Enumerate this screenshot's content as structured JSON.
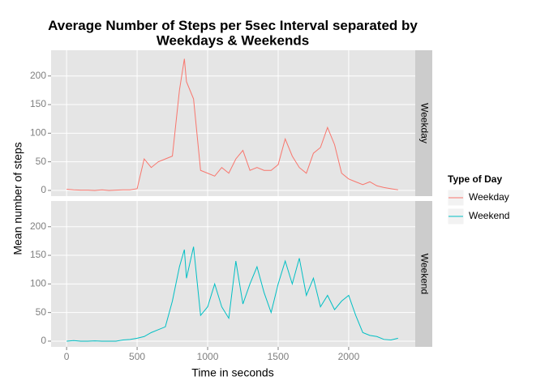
{
  "chart_data": {
    "type": "line",
    "title": "Average Number of Steps per 5sec Interval separated by\nWeekdays & Weekends",
    "x_label": "Time in seconds",
    "y_label": "Mean number of steps",
    "legend_title": "Type of Day",
    "x": [
      0,
      50,
      100,
      150,
      200,
      250,
      300,
      350,
      400,
      450,
      500,
      550,
      600,
      650,
      700,
      750,
      800,
      835,
      850,
      900,
      950,
      1000,
      1050,
      1100,
      1150,
      1200,
      1250,
      1300,
      1350,
      1400,
      1450,
      1500,
      1550,
      1600,
      1650,
      1700,
      1750,
      1800,
      1850,
      1900,
      1950,
      2000,
      2050,
      2100,
      2150,
      2200,
      2250,
      2300,
      2350
    ],
    "series": [
      {
        "name": "Weekday",
        "color": "#f8766d",
        "values": [
          2,
          1,
          0.5,
          0.5,
          0,
          1,
          0,
          0.5,
          1,
          1,
          3,
          55,
          40,
          50,
          55,
          60,
          175,
          230,
          190,
          160,
          35,
          30,
          25,
          40,
          30,
          55,
          70,
          35,
          40,
          35,
          35,
          45,
          90,
          60,
          40,
          30,
          65,
          75,
          110,
          80,
          30,
          20,
          15,
          10,
          15,
          8,
          5,
          3,
          1
        ]
      },
      {
        "name": "Weekend",
        "color": "#00bfc4",
        "values": [
          0,
          1,
          0,
          0,
          0.5,
          0,
          0,
          0,
          2,
          3,
          5,
          8,
          15,
          20,
          25,
          70,
          130,
          160,
          110,
          165,
          45,
          60,
          100,
          60,
          40,
          140,
          65,
          100,
          130,
          85,
          50,
          100,
          140,
          100,
          145,
          80,
          110,
          60,
          80,
          55,
          70,
          80,
          45,
          15,
          10,
          8,
          3,
          2,
          5
        ]
      }
    ],
    "xlim": [
      -110,
      2472
    ],
    "xticks": [
      0,
      500,
      1000,
      1500,
      2000
    ],
    "ylim": [
      -10,
      245
    ],
    "yticks": [
      0,
      50,
      100,
      150,
      200
    ],
    "grid": true
  }
}
